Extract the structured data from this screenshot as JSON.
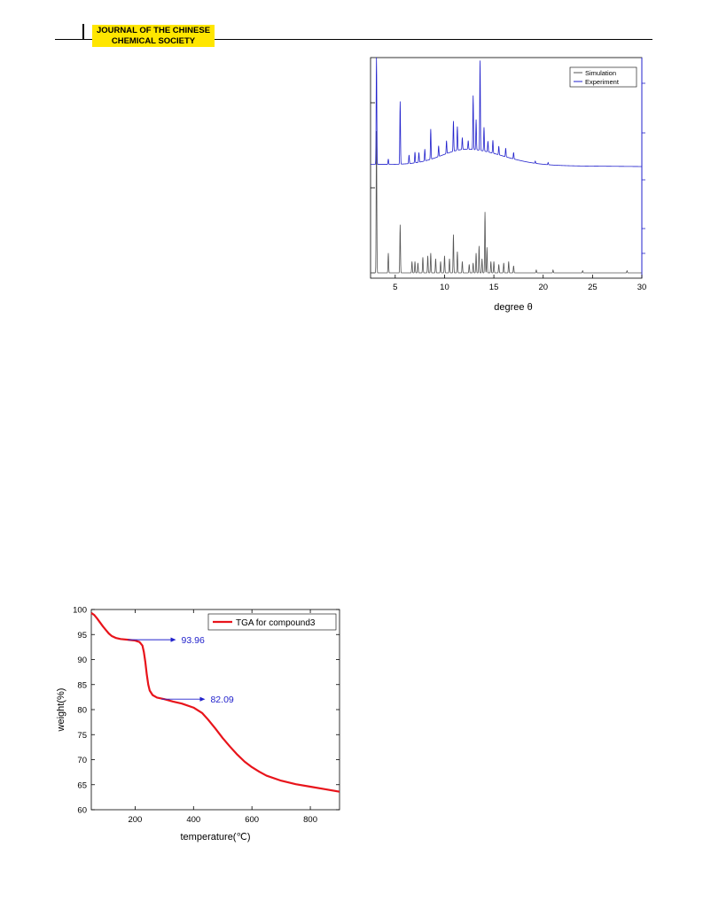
{
  "header": {
    "journal_line1": "JOURNAL OF THE CHINESE",
    "journal_line2": "CHEMICAL SOCIETY"
  },
  "figures": [
    {
      "chart_data": {
        "type": "line",
        "xlabel": "degree θ",
        "xlim": [
          2.5,
          30
        ],
        "xticks": [
          5,
          10,
          15,
          20,
          25,
          30
        ],
        "legend": "top-right",
        "series": [
          {
            "name": "Simulation",
            "color": "#555555",
            "baseline": 0,
            "peaks": [
              [
                3.1,
                100
              ],
              [
                4.3,
                14
              ],
              [
                5.5,
                34
              ],
              [
                6.7,
                8
              ],
              [
                7.0,
                8
              ],
              [
                7.3,
                7
              ],
              [
                7.8,
                11
              ],
              [
                8.3,
                12
              ],
              [
                8.6,
                14
              ],
              [
                9.1,
                10
              ],
              [
                9.6,
                8
              ],
              [
                10.0,
                12
              ],
              [
                10.5,
                10
              ],
              [
                10.9,
                27
              ],
              [
                11.3,
                15
              ],
              [
                11.8,
                8
              ],
              [
                12.5,
                6
              ],
              [
                12.9,
                7
              ],
              [
                13.2,
                14
              ],
              [
                13.5,
                19
              ],
              [
                13.8,
                10
              ],
              [
                14.1,
                43
              ],
              [
                14.3,
                18
              ],
              [
                14.7,
                8
              ],
              [
                15.0,
                8
              ],
              [
                15.5,
                6
              ],
              [
                16.0,
                7
              ],
              [
                16.5,
                8
              ],
              [
                17.0,
                5
              ],
              [
                19.3,
                2
              ],
              [
                21.0,
                2
              ],
              [
                24.0,
                1.5
              ],
              [
                28.5,
                1.5
              ]
            ]
          },
          {
            "name": "Experiment",
            "color": "#2222cc",
            "baseline": 0,
            "peaks": [
              [
                3.1,
                100
              ],
              [
                4.3,
                5
              ],
              [
                5.5,
                58
              ],
              [
                6.4,
                8
              ],
              [
                7.0,
                10
              ],
              [
                7.4,
                9
              ],
              [
                8.0,
                11
              ],
              [
                8.6,
                28
              ],
              [
                9.4,
                10
              ],
              [
                10.2,
                12
              ],
              [
                10.9,
                28
              ],
              [
                11.3,
                22
              ],
              [
                11.8,
                11
              ],
              [
                12.4,
                8
              ],
              [
                12.9,
                50
              ],
              [
                13.2,
                28
              ],
              [
                13.6,
                83
              ],
              [
                14.0,
                22
              ],
              [
                14.4,
                10
              ],
              [
                14.9,
                12
              ],
              [
                15.5,
                8
              ],
              [
                16.2,
                8
              ],
              [
                17.0,
                6
              ],
              [
                19.2,
                2
              ],
              [
                20.5,
                2
              ]
            ]
          }
        ]
      }
    },
    {
      "chart_data": {
        "type": "line",
        "xlabel": "temperature(℃)",
        "ylabel": "weight(%)",
        "xlim": [
          50,
          900
        ],
        "ylim": [
          60,
          100
        ],
        "xticks": [
          200,
          400,
          600,
          800
        ],
        "yticks": [
          60,
          65,
          70,
          75,
          80,
          85,
          90,
          95,
          100
        ],
        "legend": "top-right",
        "series": [
          {
            "name": "TGA for compound3",
            "color": "#e8141b",
            "points": [
              [
                50,
                99.3
              ],
              [
                60,
                98.9
              ],
              [
                70,
                98.2
              ],
              [
                80,
                97.4
              ],
              [
                90,
                96.6
              ],
              [
                100,
                95.9
              ],
              [
                110,
                95.2
              ],
              [
                120,
                94.7
              ],
              [
                135,
                94.3
              ],
              [
                150,
                94.1
              ],
              [
                175,
                93.96
              ],
              [
                200,
                93.8
              ],
              [
                215,
                93.5
              ],
              [
                225,
                92.8
              ],
              [
                230,
                91.5
              ],
              [
                235,
                89.5
              ],
              [
                240,
                87.0
              ],
              [
                245,
                85.0
              ],
              [
                250,
                83.8
              ],
              [
                260,
                82.9
              ],
              [
                275,
                82.4
              ],
              [
                300,
                82.09
              ],
              [
                330,
                81.6
              ],
              [
                360,
                81.2
              ],
              [
                400,
                80.4
              ],
              [
                430,
                79.3
              ],
              [
                450,
                78.0
              ],
              [
                475,
                76.2
              ],
              [
                500,
                74.3
              ],
              [
                525,
                72.6
              ],
              [
                550,
                71.0
              ],
              [
                575,
                69.6
              ],
              [
                600,
                68.5
              ],
              [
                625,
                67.6
              ],
              [
                650,
                66.8
              ],
              [
                700,
                65.8
              ],
              [
                750,
                65.1
              ],
              [
                800,
                64.6
              ],
              [
                850,
                64.1
              ],
              [
                900,
                63.6
              ]
            ]
          }
        ],
        "annotations": [
          {
            "text": "93.96",
            "x_from": 175,
            "x_to": 340,
            "y": 93.96,
            "color": "#2222cc"
          },
          {
            "text": "82.09",
            "x_from": 290,
            "x_to": 440,
            "y": 82.09,
            "color": "#2222cc"
          }
        ]
      }
    }
  ]
}
